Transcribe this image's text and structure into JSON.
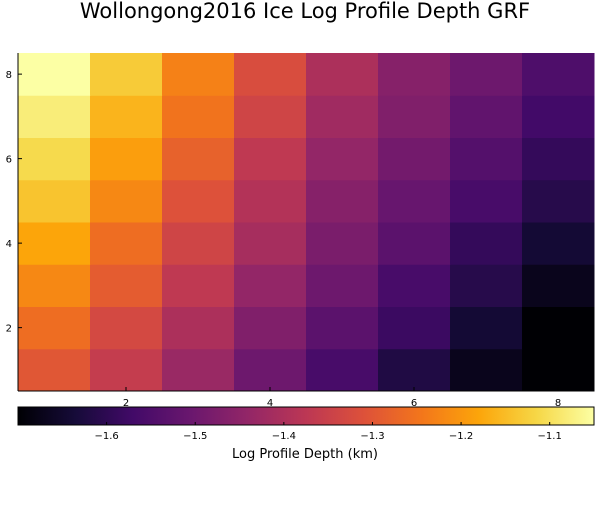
{
  "chart_data": {
    "type": "heatmap",
    "title": "Wollongong2016 Ice Log Profile Depth GRF",
    "xlabel": "",
    "ylabel": "",
    "x": [
      1,
      2,
      3,
      4,
      5,
      6,
      7,
      8
    ],
    "y": [
      1,
      2,
      3,
      4,
      5,
      6,
      7,
      8
    ],
    "x_ticks": [
      2,
      4,
      6,
      8
    ],
    "y_ticks": [
      2,
      4,
      6,
      8
    ],
    "xlim": [
      0.5,
      8.5
    ],
    "ylim": [
      0.5,
      8.5
    ],
    "z": [
      [
        -1.3,
        -1.36,
        -1.43,
        -1.5,
        -1.56,
        -1.62,
        -1.67,
        -1.72
      ],
      [
        -1.26,
        -1.33,
        -1.4,
        -1.47,
        -1.53,
        -1.58,
        -1.64,
        -1.7
      ],
      [
        -1.22,
        -1.29,
        -1.37,
        -1.44,
        -1.5,
        -1.56,
        -1.61,
        -1.67
      ],
      [
        -1.18,
        -1.26,
        -1.34,
        -1.41,
        -1.48,
        -1.53,
        -1.59,
        -1.64
      ],
      [
        -1.14,
        -1.22,
        -1.31,
        -1.39,
        -1.46,
        -1.51,
        -1.56,
        -1.61
      ],
      [
        -1.11,
        -1.19,
        -1.28,
        -1.37,
        -1.44,
        -1.49,
        -1.54,
        -1.59
      ],
      [
        -1.08,
        -1.16,
        -1.25,
        -1.34,
        -1.42,
        -1.47,
        -1.52,
        -1.57
      ],
      [
        -1.05,
        -1.13,
        -1.23,
        -1.32,
        -1.4,
        -1.46,
        -1.5,
        -1.55
      ]
    ],
    "colorbar": {
      "label": "Log Profile Depth (km)",
      "colormap": "inferno",
      "min": -1.7,
      "max": -1.05,
      "ticks": [
        -1.6,
        -1.5,
        -1.4,
        -1.3,
        -1.2,
        -1.1
      ],
      "tick_labels": [
        "−1.6",
        "−1.5",
        "−1.4",
        "−1.3",
        "−1.2",
        "−1.1"
      ]
    },
    "grid": false,
    "legend": "none"
  }
}
